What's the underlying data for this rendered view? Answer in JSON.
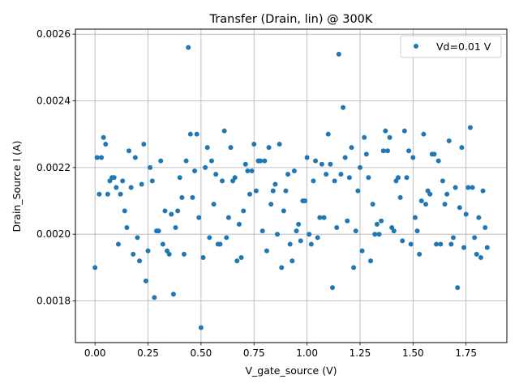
{
  "chart_data": {
    "type": "scatter",
    "title": "Transfer (Drain, lin) @ 300K",
    "xlabel": "V_gate_source (V)",
    "ylabel": "Drain_Source I (A)",
    "xlim": [
      -0.0925,
      1.9425
    ],
    "ylim": [
      0.001675,
      0.002615
    ],
    "xticks": [
      0.0,
      0.25,
      0.5,
      0.75,
      1.0,
      1.25,
      1.5,
      1.75
    ],
    "xtick_labels": [
      "0.00",
      "0.25",
      "0.50",
      "0.75",
      "1.00",
      "1.25",
      "1.50",
      "1.75"
    ],
    "yticks": [
      0.0018,
      0.002,
      0.0022,
      0.0024,
      0.0026
    ],
    "ytick_labels": [
      "0.0018",
      "0.0020",
      "0.0022",
      "0.0024",
      "0.0026"
    ],
    "grid": true,
    "legend": {
      "position": "top-right",
      "entries": [
        "Vd=0.01 V"
      ]
    },
    "marker_color": "#1f77b4",
    "series": [
      {
        "name": "Vd=0.01 V",
        "points": [
          [
            0.0,
            0.0019
          ],
          [
            0.01,
            0.00223
          ],
          [
            0.02,
            0.00212
          ],
          [
            0.03,
            0.00223
          ],
          [
            0.04,
            0.00229
          ],
          [
            0.05,
            0.00227
          ],
          [
            0.06,
            0.00212
          ],
          [
            0.07,
            0.00216
          ],
          [
            0.08,
            0.00217
          ],
          [
            0.09,
            0.00217
          ],
          [
            0.1,
            0.00214
          ],
          [
            0.11,
            0.00197
          ],
          [
            0.12,
            0.00212
          ],
          [
            0.13,
            0.00216
          ],
          [
            0.14,
            0.00207
          ],
          [
            0.15,
            0.00202
          ],
          [
            0.16,
            0.00225
          ],
          [
            0.17,
            0.00214
          ],
          [
            0.18,
            0.00194
          ],
          [
            0.19,
            0.00223
          ],
          [
            0.2,
            0.00199
          ],
          [
            0.21,
            0.00192
          ],
          [
            0.22,
            0.00215
          ],
          [
            0.23,
            0.00227
          ],
          [
            0.24,
            0.00186
          ],
          [
            0.25,
            0.00195
          ],
          [
            0.26,
            0.0022
          ],
          [
            0.27,
            0.00216
          ],
          [
            0.28,
            0.00181
          ],
          [
            0.29,
            0.00201
          ],
          [
            0.3,
            0.00201
          ],
          [
            0.31,
            0.00222
          ],
          [
            0.32,
            0.00197
          ],
          [
            0.33,
            0.00207
          ],
          [
            0.34,
            0.00195
          ],
          [
            0.35,
            0.00194
          ],
          [
            0.36,
            0.00206
          ],
          [
            0.37,
            0.00182
          ],
          [
            0.38,
            0.00202
          ],
          [
            0.39,
            0.00207
          ],
          [
            0.4,
            0.00217
          ],
          [
            0.41,
            0.00211
          ],
          [
            0.42,
            0.00194
          ],
          [
            0.43,
            0.00222
          ],
          [
            0.44,
            0.00256
          ],
          [
            0.45,
            0.0023
          ],
          [
            0.46,
            0.00211
          ],
          [
            0.47,
            0.00219
          ],
          [
            0.48,
            0.0023
          ],
          [
            0.49,
            0.00205
          ],
          [
            0.5,
            0.00172
          ],
          [
            0.51,
            0.00193
          ],
          [
            0.52,
            0.0022
          ],
          [
            0.53,
            0.00226
          ],
          [
            0.54,
            0.00199
          ],
          [
            0.55,
            0.00222
          ],
          [
            0.56,
            0.00209
          ],
          [
            0.57,
            0.00218
          ],
          [
            0.58,
            0.00197
          ],
          [
            0.59,
            0.00197
          ],
          [
            0.6,
            0.00216
          ],
          [
            0.61,
            0.00231
          ],
          [
            0.62,
            0.00199
          ],
          [
            0.63,
            0.00205
          ],
          [
            0.64,
            0.00226
          ],
          [
            0.65,
            0.00216
          ],
          [
            0.66,
            0.00217
          ],
          [
            0.67,
            0.00192
          ],
          [
            0.68,
            0.00203
          ],
          [
            0.69,
            0.00193
          ],
          [
            0.7,
            0.00207
          ],
          [
            0.71,
            0.00221
          ],
          [
            0.72,
            0.00219
          ],
          [
            0.73,
            0.00212
          ],
          [
            0.74,
            0.00219
          ],
          [
            0.75,
            0.00227
          ],
          [
            0.76,
            0.00213
          ],
          [
            0.77,
            0.00222
          ],
          [
            0.78,
            0.00222
          ],
          [
            0.79,
            0.00201
          ],
          [
            0.8,
            0.00222
          ],
          [
            0.81,
            0.00195
          ],
          [
            0.82,
            0.00226
          ],
          [
            0.83,
            0.00209
          ],
          [
            0.84,
            0.00213
          ],
          [
            0.85,
            0.00215
          ],
          [
            0.86,
            0.002
          ],
          [
            0.87,
            0.00227
          ],
          [
            0.88,
            0.0019
          ],
          [
            0.89,
            0.00207
          ],
          [
            0.9,
            0.00213
          ],
          [
            0.91,
            0.00218
          ],
          [
            0.92,
            0.00197
          ],
          [
            0.93,
            0.00192
          ],
          [
            0.94,
            0.00219
          ],
          [
            0.95,
            0.00201
          ],
          [
            0.96,
            0.00203
          ],
          [
            0.97,
            0.00198
          ],
          [
            0.98,
            0.0021
          ],
          [
            0.99,
            0.0021
          ],
          [
            1.0,
            0.00223
          ],
          [
            1.01,
            0.002
          ],
          [
            1.02,
            0.00197
          ],
          [
            1.03,
            0.00216
          ],
          [
            1.04,
            0.00222
          ],
          [
            1.05,
            0.00199
          ],
          [
            1.06,
            0.00205
          ],
          [
            1.07,
            0.00221
          ],
          [
            1.08,
            0.00205
          ],
          [
            1.09,
            0.00218
          ],
          [
            1.1,
            0.0023
          ],
          [
            1.11,
            0.00221
          ],
          [
            1.12,
            0.00184
          ],
          [
            1.13,
            0.00216
          ],
          [
            1.14,
            0.00202
          ],
          [
            1.15,
            0.00254
          ],
          [
            1.16,
            0.00218
          ],
          [
            1.17,
            0.00238
          ],
          [
            1.18,
            0.00223
          ],
          [
            1.19,
            0.00204
          ],
          [
            1.2,
            0.00217
          ],
          [
            1.21,
            0.00226
          ],
          [
            1.22,
            0.0019
          ],
          [
            1.23,
            0.00201
          ],
          [
            1.24,
            0.00213
          ],
          [
            1.25,
            0.0022
          ],
          [
            1.26,
            0.00195
          ],
          [
            1.27,
            0.00229
          ],
          [
            1.28,
            0.00224
          ],
          [
            1.29,
            0.00217
          ],
          [
            1.3,
            0.00192
          ],
          [
            1.31,
            0.00209
          ],
          [
            1.32,
            0.002
          ],
          [
            1.33,
            0.00203
          ],
          [
            1.34,
            0.002
          ],
          [
            1.35,
            0.00204
          ],
          [
            1.36,
            0.00225
          ],
          [
            1.37,
            0.00231
          ],
          [
            1.38,
            0.00225
          ],
          [
            1.39,
            0.00229
          ],
          [
            1.4,
            0.00202
          ],
          [
            1.41,
            0.00201
          ],
          [
            1.42,
            0.00216
          ],
          [
            1.43,
            0.00217
          ],
          [
            1.44,
            0.00211
          ],
          [
            1.45,
            0.00198
          ],
          [
            1.46,
            0.00231
          ],
          [
            1.47,
            0.00217
          ],
          [
            1.48,
            0.00225
          ],
          [
            1.49,
            0.00197
          ],
          [
            1.5,
            0.00223
          ],
          [
            1.51,
            0.00205
          ],
          [
            1.52,
            0.00201
          ],
          [
            1.53,
            0.00194
          ],
          [
            1.54,
            0.0021
          ],
          [
            1.55,
            0.0023
          ],
          [
            1.56,
            0.00209
          ],
          [
            1.57,
            0.00213
          ],
          [
            1.58,
            0.00212
          ],
          [
            1.59,
            0.00224
          ],
          [
            1.6,
            0.00224
          ],
          [
            1.61,
            0.00197
          ],
          [
            1.62,
            0.00222
          ],
          [
            1.63,
            0.00197
          ],
          [
            1.64,
            0.00216
          ],
          [
            1.65,
            0.00209
          ],
          [
            1.66,
            0.00212
          ],
          [
            1.67,
            0.00228
          ],
          [
            1.68,
            0.00197
          ],
          [
            1.69,
            0.00199
          ],
          [
            1.7,
            0.00214
          ],
          [
            1.71,
            0.00184
          ],
          [
            1.72,
            0.00208
          ],
          [
            1.73,
            0.00226
          ],
          [
            1.74,
            0.00196
          ],
          [
            1.75,
            0.00206
          ],
          [
            1.76,
            0.00214
          ],
          [
            1.77,
            0.00232
          ],
          [
            1.78,
            0.00214
          ],
          [
            1.79,
            0.00199
          ],
          [
            1.8,
            0.00194
          ],
          [
            1.81,
            0.00205
          ],
          [
            1.82,
            0.00193
          ],
          [
            1.83,
            0.00213
          ],
          [
            1.84,
            0.00202
          ],
          [
            1.85,
            0.00196
          ]
        ]
      }
    ]
  }
}
